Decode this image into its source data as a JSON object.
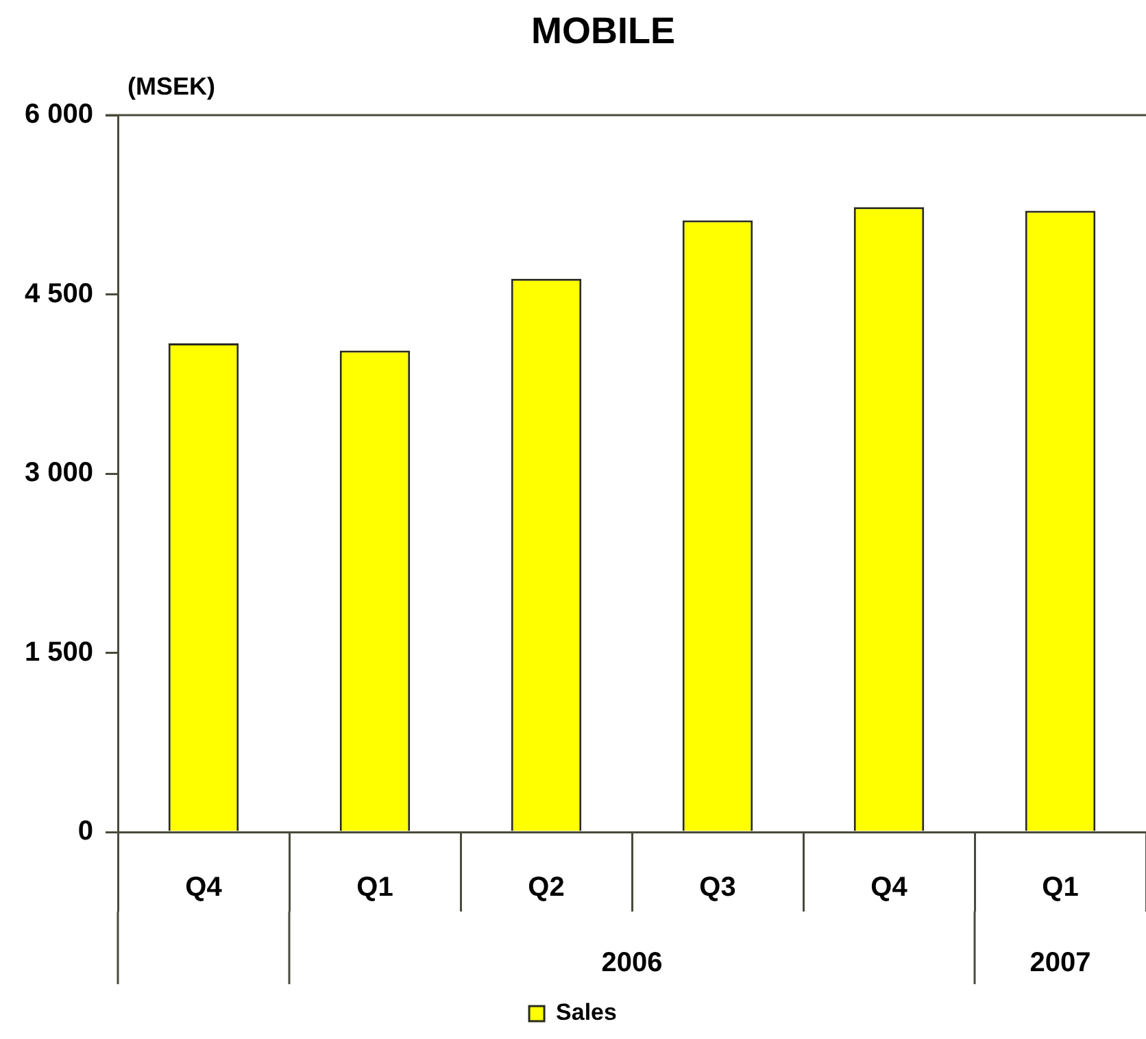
{
  "chart_data": {
    "type": "bar",
    "title": "MOBILE",
    "ylabel": "(MSEK)",
    "categories": [
      "Q4",
      "Q1",
      "Q2",
      "Q3",
      "Q4",
      "Q1"
    ],
    "series": [
      {
        "name": "Sales",
        "color": "#ffff00",
        "values": [
          4090,
          4030,
          4630,
          5120,
          5230,
          5200
        ]
      }
    ],
    "ylim": [
      0,
      6000
    ],
    "yticks": [
      0,
      {
        "value": 1500,
        "label": "1 500"
      },
      {
        "value": 3000,
        "label": "3 000"
      },
      {
        "value": 4500,
        "label": "4 500"
      },
      {
        "value": 6000,
        "label": "6 000"
      }
    ],
    "legend": "bottom",
    "annotations": [
      "2006",
      "2007"
    ]
  }
}
